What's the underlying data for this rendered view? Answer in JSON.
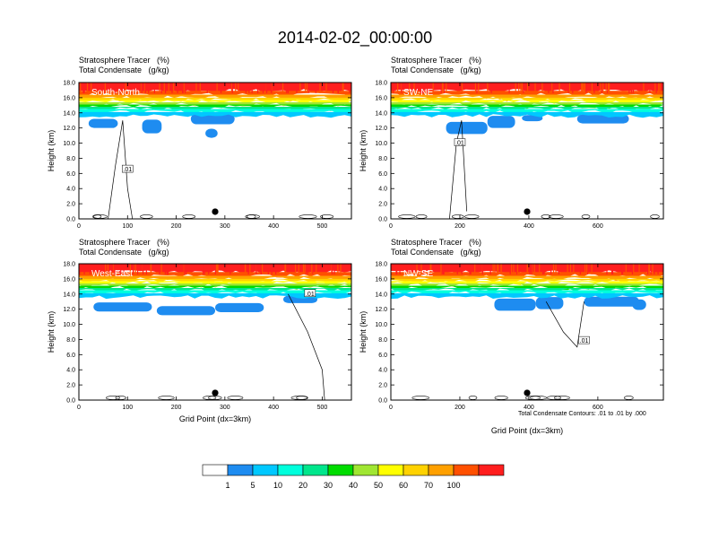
{
  "chart_data": {
    "type": "heatmap",
    "title": "2014-02-02_00:00:00",
    "subtitle_line1": "Stratosphere Tracer   (%)",
    "subtitle_line2": "Total Condensate   (g/kg)",
    "ylabel": "Height (km)",
    "xlabel": "Grid Point (dx=3km)",
    "ylim": [
      0,
      18
    ],
    "yticks": [
      "0.0",
      "2.0",
      "4.0",
      "6.0",
      "8.0",
      "10.0",
      "12.0",
      "14.0",
      "16.0",
      "18.0"
    ],
    "footnote": "Total Condensate Contours: .01 to .01 by .000",
    "contour_label": ".01",
    "colorbar": {
      "levels": [
        "1",
        "5",
        "10",
        "20",
        "30",
        "40",
        "50",
        "60",
        "70",
        "100"
      ],
      "colors": [
        "#ffffff",
        "#1e8cf0",
        "#00c8ff",
        "#00ffdc",
        "#00e68c",
        "#00dc00",
        "#a0e632",
        "#ffff00",
        "#ffd200",
        "#ffa000",
        "#ff5000",
        "#ff1e1e"
      ]
    },
    "panels": [
      {
        "label": "South-North",
        "xlim": [
          0,
          560
        ],
        "xticks": [
          0,
          100,
          200,
          300,
          400,
          500
        ],
        "marker_x": 280
      },
      {
        "label": "SW-NE",
        "xlim": [
          0,
          790
        ],
        "xticks": [
          0,
          200,
          400,
          600
        ],
        "marker_x": 395
      },
      {
        "label": "West-East",
        "xlim": [
          0,
          560
        ],
        "xticks": [
          0,
          100,
          200,
          300,
          400,
          500
        ],
        "marker_x": 280
      },
      {
        "label": "NW-SE",
        "xlim": [
          0,
          790
        ],
        "xticks": [
          0,
          200,
          400,
          600
        ],
        "marker_x": 395
      }
    ]
  }
}
